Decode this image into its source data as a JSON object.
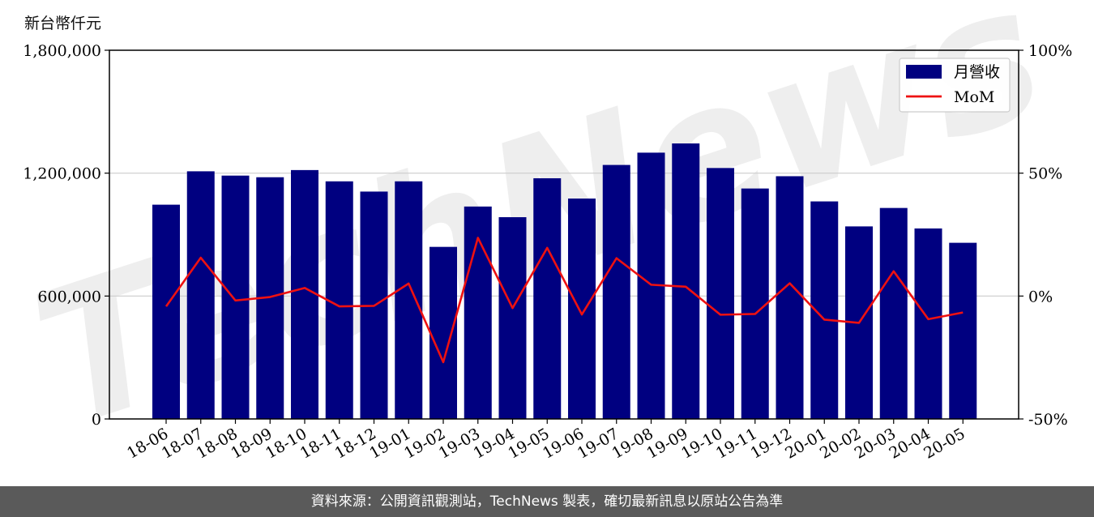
{
  "y_unit_label": "新台幣仟元",
  "footer": {
    "source_text": "資料來源：公開資訊觀測站，TechNews 製表，確切最新訊息以原站公告為準"
  },
  "watermark_text": "TechNews",
  "colors": {
    "bar": "#000080",
    "line": "#ee1111",
    "grid": "#cccccc",
    "footer_bg": "#5a5a5a"
  },
  "chart_data": {
    "type": "bar",
    "categories": [
      "18-06",
      "18-07",
      "18-08",
      "18-09",
      "18-10",
      "18-11",
      "18-12",
      "19-01",
      "19-02",
      "19-03",
      "19-04",
      "19-05",
      "19-06",
      "19-07",
      "19-08",
      "19-09",
      "19-10",
      "19-11",
      "19-12",
      "20-01",
      "20-02",
      "20-03",
      "20-04",
      "20-05"
    ],
    "series": [
      {
        "name": "月營收",
        "type": "bar",
        "axis": "left",
        "values": [
          1046000,
          1209000,
          1188000,
          1180000,
          1215000,
          1160000,
          1110000,
          1160000,
          840000,
          1037000,
          985000,
          1175000,
          1076000,
          1240000,
          1300000,
          1345000,
          1225000,
          1125000,
          1185000,
          1062000,
          940000,
          1030000,
          930000,
          860000
        ]
      },
      {
        "name": "MoM",
        "type": "line",
        "axis": "right",
        "values": [
          -4.2,
          15.6,
          -1.8,
          -0.4,
          3.3,
          -4.2,
          -4,
          5.1,
          -26.9,
          23.7,
          -4.9,
          19.6,
          -7.5,
          15.4,
          4.6,
          3.8,
          -7.6,
          -7.3,
          5.2,
          -9.6,
          -10.9,
          10.1,
          -9.4,
          -6.7
        ]
      }
    ],
    "left_axis": {
      "ylim": [
        0,
        1800000
      ],
      "ticks": [
        "0",
        "600,000",
        "1,200,000",
        "1,800,000"
      ]
    },
    "right_axis": {
      "ylim": [
        -50,
        100
      ],
      "ticks": [
        "-50%",
        "0%",
        "50%",
        "100%"
      ]
    },
    "grid": "horizontal",
    "legend": {
      "position": "top-right",
      "entries": [
        "月營收",
        "MoM"
      ]
    }
  }
}
